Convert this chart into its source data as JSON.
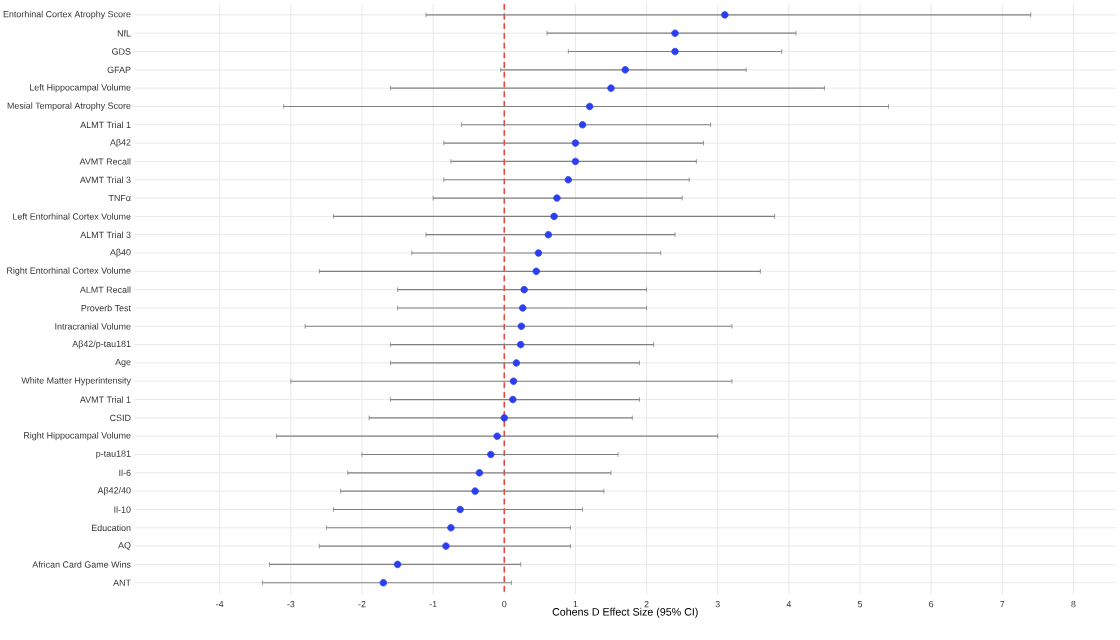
{
  "chart_data": {
    "type": "scatter",
    "orientation": "horizontal",
    "xlabel": "Cohens D Effect Size (95% CI)",
    "categories": [
      "Entorhinal Cortex Atrophy Score",
      "NfL",
      "GDS",
      "GFAP",
      "Left Hippocampal Volume",
      "Mesial Temporal Atrophy Score",
      "ALMT Trial 1",
      "Aβ42",
      "AVMT Recall",
      "AVMT Trial 3",
      "TNFα",
      "Left Entorhinal Cortex Volume",
      "ALMT Trial 3",
      "Aβ40",
      "Right Entorhinal Cortex Volume",
      "ALMT Recall",
      "Proverb Test",
      "Intracranial Volume",
      "Aβ42/p-tau181",
      "Age",
      "White Matter Hyperintensity",
      "AVMT Trial 1",
      "CSID",
      "Right Hippocampal Volume",
      "p-tau181",
      "Il-6",
      "Aβ42/40",
      "Il-10",
      "Education",
      "AQ",
      "African Card Game Wins",
      "ANT"
    ],
    "values": [
      3.1,
      2.4,
      2.4,
      1.7,
      1.5,
      1.2,
      1.1,
      1.0,
      1.0,
      0.9,
      0.74,
      0.7,
      0.62,
      0.48,
      0.45,
      0.28,
      0.26,
      0.24,
      0.23,
      0.17,
      0.13,
      0.12,
      0.0,
      -0.1,
      -0.19,
      -0.35,
      -0.41,
      -0.62,
      -0.75,
      -0.82,
      -1.5,
      -1.7
    ],
    "errors": [
      [
        -1.1,
        7.4
      ],
      [
        0.6,
        4.1
      ],
      [
        0.9,
        3.9
      ],
      [
        -0.05,
        3.4
      ],
      [
        -1.6,
        4.5
      ],
      [
        -3.1,
        5.4
      ],
      [
        -0.6,
        2.9
      ],
      [
        -0.85,
        2.8
      ],
      [
        -0.75,
        2.7
      ],
      [
        -0.85,
        2.6
      ],
      [
        -1.0,
        2.5
      ],
      [
        -2.4,
        3.8
      ],
      [
        -1.1,
        2.4
      ],
      [
        -1.3,
        2.2
      ],
      [
        -2.6,
        3.6
      ],
      [
        -1.5,
        2.0
      ],
      [
        -1.5,
        2.0
      ],
      [
        -2.8,
        3.2
      ],
      [
        -1.6,
        2.1
      ],
      [
        -1.6,
        1.9
      ],
      [
        -3.0,
        3.2
      ],
      [
        -1.6,
        1.9
      ],
      [
        -1.9,
        1.8
      ],
      [
        -3.2,
        3.0
      ],
      [
        -2.0,
        1.6
      ],
      [
        -2.2,
        1.5
      ],
      [
        -2.3,
        1.4
      ],
      [
        -2.4,
        1.1
      ],
      [
        -2.5,
        0.93
      ],
      [
        -2.6,
        0.93
      ],
      [
        -3.3,
        0.23
      ],
      [
        -3.4,
        0.1
      ]
    ],
    "color": "#2b3ff0",
    "marker": "circle",
    "grid": true,
    "xlim": [
      -5.2,
      8.6
    ],
    "xticks": [
      -4,
      -3,
      -2,
      -1,
      0,
      1,
      2,
      3,
      4,
      5,
      6,
      7,
      8
    ],
    "ref_lines": [
      {
        "axis": "x",
        "value": 0,
        "color": "#e8453c",
        "line_style": "dashed"
      }
    ]
  }
}
